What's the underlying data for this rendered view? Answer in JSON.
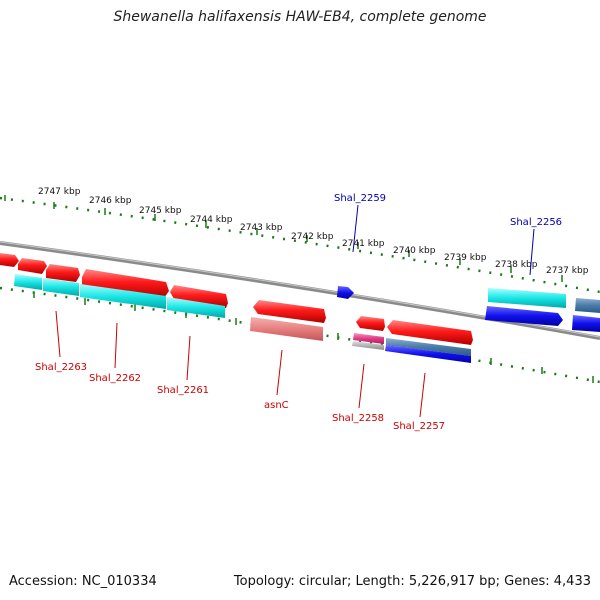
{
  "title": "Shewanella halifaxensis HAW-EB4, complete genome",
  "footer": {
    "accession": "Accession: NC_010334",
    "summary": "Topology: circular; Length: 5,226,917 bp; Genes: 4,433"
  },
  "ruler_labels": [
    "2747 kbp",
    "2746 kbp",
    "2745 kbp",
    "2744 kbp",
    "2743 kbp",
    "2742 kbp",
    "2741 kbp",
    "2740 kbp",
    "2739 kbp",
    "2738 kbp",
    "2737 kbp"
  ],
  "genes_top": [
    "Shal_2259",
    "Shal_2256"
  ],
  "genes_bottom": [
    "Shal_2263",
    "Shal_2262",
    "Shal_2261",
    "asnC",
    "Shal_2258",
    "Shal_2257"
  ],
  "colors": {
    "forward_gene": "#ff0000",
    "forward_cds": "#0000ee",
    "reverse_cds_alt": "#00e5e5",
    "rna_pink": "#e8448a",
    "backbone": "#888888",
    "tick": "#1a7a1a",
    "label_blue": "#0000aa",
    "label_red": "#cc0000"
  }
}
